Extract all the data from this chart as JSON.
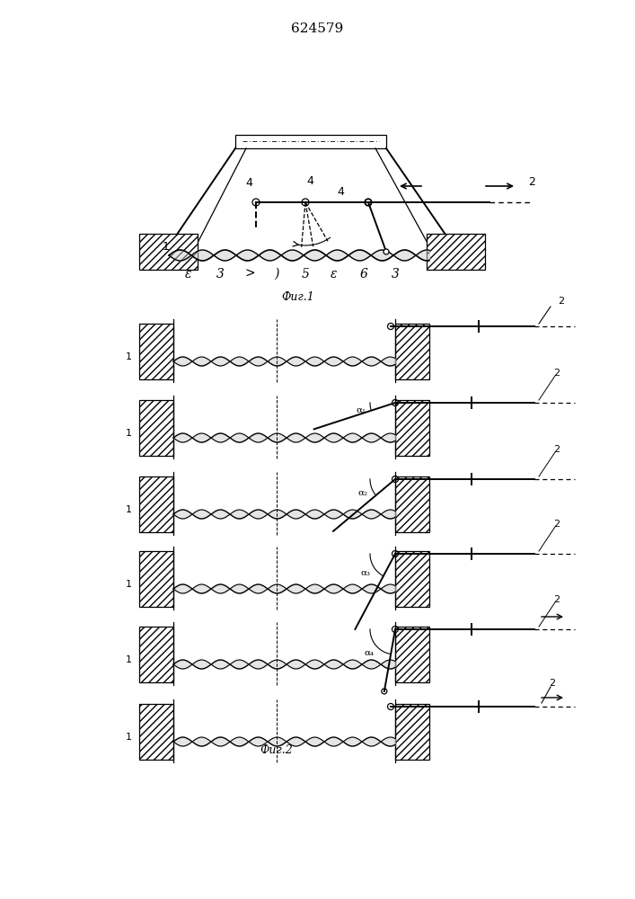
{
  "title": "624579",
  "fig1_caption": "Фиг.1",
  "fig2_caption": "Фиг.2",
  "bg_color": "#ffffff",
  "line_color": "#000000",
  "alpha_labels": [
    "α₁",
    "α₂",
    "α₃",
    "α₄"
  ]
}
